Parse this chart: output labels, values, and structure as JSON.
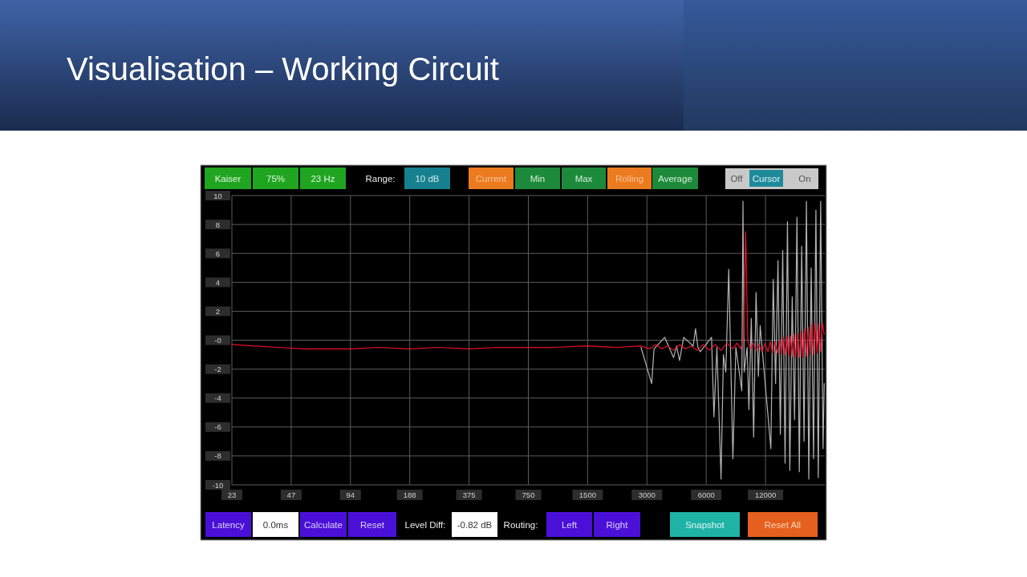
{
  "chart_data": {
    "type": "line",
    "title": "Visualisation – Working Circuit",
    "log": "x",
    "xlim": [
      23.4375,
      24000
    ],
    "xticks": [
      {
        "value": 23.4375,
        "label": "23"
      },
      {
        "value": 46.875,
        "label": "47"
      },
      {
        "value": 93.75,
        "label": "94"
      },
      {
        "value": 187.5,
        "label": "188"
      },
      375,
      750,
      1500,
      3000,
      6000,
      12000
    ],
    "ylim": [
      -10,
      10
    ],
    "yticks": [
      -10,
      -8,
      -6,
      -4,
      -2,
      {
        "value": 0,
        "label": "-0"
      },
      2,
      4,
      6,
      8,
      10
    ],
    "grid": true,
    "annotations": [
      "Kaiser",
      "75%",
      "23 Hz",
      "Range:",
      "10 dB",
      "Current",
      "Min",
      "Max",
      "Rolling",
      "Average",
      "Off",
      "Cursor",
      "On",
      "Latency",
      "0.0ms",
      "Calculate",
      "Reset",
      "Level Diff:",
      "-0.82 dB",
      "Routing:",
      "Left",
      "Right",
      "Snapshot",
      "Reset All"
    ],
    "series": [
      {
        "color": "#b4b4b4",
        "x": [
          2799,
          3171,
          3260,
          3693,
          4098,
          4243,
          4392,
          4611,
          5151,
          5296,
          5445,
          5598,
          6386,
          6566,
          6797,
          7135,
          7336,
          7542,
          7808,
          8196,
          8485,
          9094,
          9221,
          9350,
          9680,
          9883,
          10161,
          10447,
          10741,
          11042,
          11275,
          12773,
          13132,
          13501,
          13881,
          14271,
          14671,
          15084,
          15508,
          15944,
          16392,
          16853,
          17327,
          17814,
          18315,
          18830,
          19360,
          19903,
          20463,
          21038,
          21630,
          22238,
          22864,
          23506,
          23834
        ],
        "values": [
          -0.5,
          -3.0,
          -0.6,
          0.2,
          -1.2,
          -0.4,
          -1.4,
          0.2,
          -0.4,
          0.8,
          -0.5,
          -0.8,
          0.2,
          -5.3,
          -0.5,
          -9.6,
          -1.0,
          -2.2,
          4.9,
          -8.2,
          -0.5,
          -3.5,
          9.6,
          -2.2,
          -0.5,
          -4.8,
          1.5,
          -6.7,
          3.3,
          -2.5,
          1.0,
          -7.5,
          4.2,
          -3.0,
          5.5,
          -6.5,
          6.2,
          -8.5,
          8.2,
          -9.0,
          3.0,
          -5.5,
          8.5,
          -9.1,
          6.5,
          -7.0,
          9.6,
          -9.6,
          5.0,
          -8.2,
          9.0,
          -9.5,
          9.6,
          -7.5,
          -3.0
        ]
      },
      {
        "color": "#e8102c",
        "x": [
          23.4375,
          30,
          40,
          55,
          75,
          94,
          130,
          188,
          260,
          375,
          520,
          750,
          1000,
          1500,
          2100,
          2800,
          3105,
          3329,
          3568,
          3824,
          4098,
          4392,
          4708,
          5045,
          5408,
          5796,
          6212,
          6658,
          7135,
          7648,
          8196,
          8604,
          8969,
          9286,
          9514,
          9747,
          10022,
          10375,
          10741,
          11119,
          11511,
          11917,
          12337,
          12684,
          13040,
          13407,
          13784,
          14171,
          14470,
          14773,
          15084,
          15401,
          15725,
          16055,
          16392,
          16736,
          17089,
          17448,
          17814,
          18189,
          18571,
          18961,
          19360,
          19766,
          20182,
          20605,
          21038,
          21481,
          21932,
          22393,
          22864,
          23344,
          23834
        ],
        "values": [
          -0.3,
          -0.4,
          -0.5,
          -0.6,
          -0.6,
          -0.6,
          -0.5,
          -0.6,
          -0.5,
          -0.6,
          -0.5,
          -0.5,
          -0.5,
          -0.4,
          -0.5,
          -0.4,
          -0.6,
          -0.3,
          -0.6,
          -0.4,
          -0.7,
          -0.3,
          -0.6,
          -0.4,
          -0.7,
          -0.3,
          -0.7,
          -0.3,
          -0.7,
          -0.2,
          -0.6,
          -0.2,
          -0.6,
          0.2,
          7.5,
          0.0,
          -0.6,
          -0.2,
          -0.7,
          -0.3,
          -0.8,
          -0.2,
          -0.8,
          -0.1,
          -0.9,
          -0.1,
          -0.9,
          0.0,
          -1.0,
          0.2,
          -1.0,
          0.3,
          -1.1,
          0.3,
          -1.1,
          0.4,
          -1.2,
          0.5,
          -1.2,
          0.6,
          -1.2,
          0.8,
          -1.1,
          0.9,
          -1.0,
          1.1,
          -1.0,
          1.2,
          -0.9,
          1.1,
          -0.8,
          1.2,
          0.4
        ]
      }
    ]
  }
}
